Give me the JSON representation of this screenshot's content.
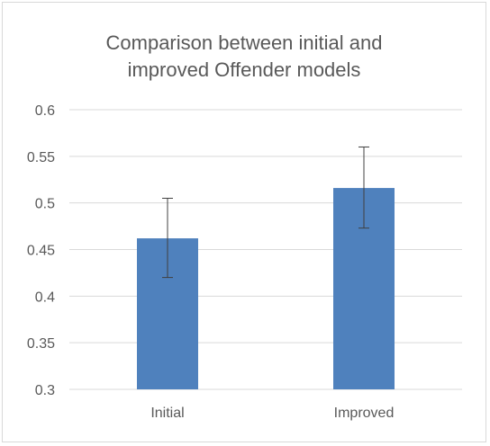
{
  "chart_data": {
    "type": "bar",
    "title_lines": [
      "Comparison between initial and",
      "improved Offender models"
    ],
    "categories": [
      "Initial",
      "Improved"
    ],
    "values": [
      0.462,
      0.516
    ],
    "error_bars": [
      {
        "low": 0.42,
        "high": 0.505
      },
      {
        "low": 0.473,
        "high": 0.56
      }
    ],
    "ylim": [
      0.3,
      0.6
    ],
    "yticks": [
      0.3,
      0.35,
      0.4,
      0.45,
      0.5,
      0.55,
      0.6
    ],
    "ytick_labels": [
      "0.3",
      "0.35",
      "0.4",
      "0.45",
      "0.5",
      "0.55",
      "0.6"
    ],
    "xlabel": "",
    "ylabel": "",
    "grid": true,
    "legend": "none",
    "colors": {
      "bar": "#4f81bd",
      "grid": "#d9d9d9",
      "axis": "#d9d9d9",
      "text": "#595959",
      "error_bar": "#404040"
    }
  }
}
